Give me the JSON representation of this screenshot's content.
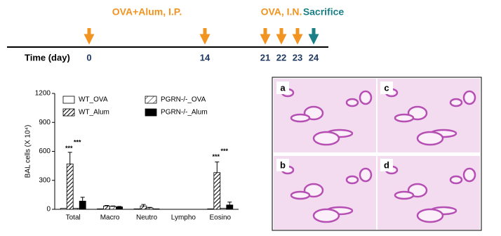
{
  "timeline": {
    "axis_label": "Time (day)",
    "events": [
      {
        "label": "OVA+Alum, I.P.",
        "color": "#f29422",
        "days": [
          0,
          14
        ]
      },
      {
        "label": "OVA, I.N.",
        "color": "#f29422",
        "days": [
          21,
          22,
          23
        ]
      },
      {
        "label": "Sacrifice",
        "color": "#1a7f86",
        "days": [
          24
        ]
      }
    ]
  },
  "chart_data": {
    "type": "bar",
    "ylabel": "BAL cells (X 10⁴)",
    "categories": [
      "Total",
      "Macro",
      "Neutro",
      "Lympho",
      "Eosino"
    ],
    "ylim": [
      0,
      1200
    ],
    "yticks": [
      0,
      300,
      600,
      900,
      1200
    ],
    "series": [
      {
        "name": "WT_OVA",
        "color": "#ffffff",
        "hatch": null,
        "values": [
          10,
          5,
          5,
          0,
          5
        ],
        "errors": [
          0,
          0,
          0,
          0,
          0
        ]
      },
      {
        "name": "WT_Alum",
        "color": "#000000",
        "hatch": "dense",
        "values": [
          470,
          35,
          35,
          0,
          380
        ],
        "errors": [
          120,
          5,
          15,
          0,
          110
        ]
      },
      {
        "name": "PGRN-/-_OVA",
        "color": "#000000",
        "hatch": "sparse",
        "values": [
          10,
          30,
          15,
          0,
          10
        ],
        "errors": [
          0,
          5,
          5,
          0,
          0
        ]
      },
      {
        "name": "PGRN-/-_Alum",
        "color": "#000000",
        "hatch": null,
        "values": [
          85,
          25,
          5,
          0,
          45
        ],
        "errors": [
          40,
          5,
          0,
          0,
          30
        ]
      }
    ],
    "annotations": [
      "***",
      "***",
      "***",
      "***"
    ]
  },
  "panels": [
    "a",
    "c",
    "b",
    "d"
  ]
}
